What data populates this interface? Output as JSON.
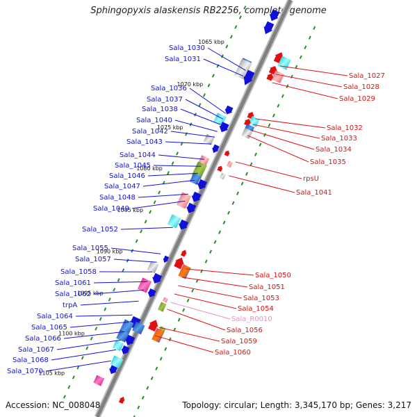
{
  "title": "Sphingopyxis alaskensis RB2256, complete genome",
  "accession": "Accession: NC_008048",
  "summary": "Topology: circular; Length: 3,345,170 bp; Genes: 3,217",
  "colors": {
    "forward": "#1010d8",
    "reverse": "#e01010",
    "rna": "#e890c8",
    "backbone": "#808080",
    "scale_ticks": "#2a8a2a"
  },
  "kbp_marks": [
    "1065 kbp",
    "1070 kbp",
    "1075 kbp",
    "1080 kbp",
    "1085 kbp",
    "1090 kbp",
    "1095 kbp",
    "1100 kbp",
    "1105 kbp"
  ],
  "forward_labels": [
    "Sala_1030",
    "Sala_1031",
    "Sala_1036",
    "Sala_1037",
    "Sala_1038",
    "Sala_1040",
    "Sala_1042",
    "Sala_1043",
    "Sala_1044",
    "Sala_1045",
    "Sala_1046",
    "Sala_1047",
    "Sala_1048",
    "Sala_1049",
    "Sala_1052",
    "Sala_1055",
    "Sala_1057",
    "Sala_1058",
    "Sala_1061",
    "Sala_1062",
    "trpA",
    "Sala_1064",
    "Sala_1065",
    "Sala_1066",
    "Sala_1067",
    "Sala_1068",
    "Sala_1070"
  ],
  "reverse_labels": [
    "Sala_1027",
    "Sala_1028",
    "Sala_1029",
    "Sala_1032",
    "Sala_1033",
    "Sala_1034",
    "Sala_1035",
    "rpsU",
    "Sala_1041",
    "Sala_1050",
    "Sala_1051",
    "Sala_1053",
    "Sala_1054",
    "Sala_R0010",
    "Sala_1056",
    "Sala_1059",
    "Sala_1060"
  ]
}
